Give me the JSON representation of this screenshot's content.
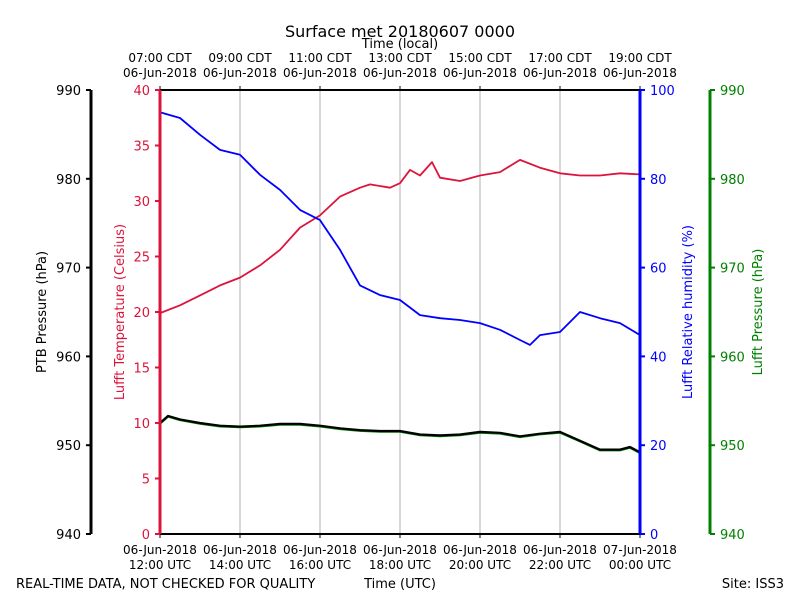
{
  "chart_data": {
    "type": "line",
    "title": "Surface met 20180607 0000",
    "top_axis_label": "Time (local)",
    "xlabel": "Time (UTC)",
    "footer_left": "REAL-TIME DATA, NOT CHECKED FOR QUALITY",
    "footer_right": "Site: ISS3",
    "xlim_hours_since_12utc": [
      0,
      12
    ],
    "grid": "vertical",
    "bottom_ticks": [
      {
        "h": 0,
        "l1": "06-Jun-2018",
        "l2": "12:00 UTC"
      },
      {
        "h": 2,
        "l1": "06-Jun-2018",
        "l2": "14:00 UTC"
      },
      {
        "h": 4,
        "l1": "06-Jun-2018",
        "l2": "16:00 UTC"
      },
      {
        "h": 6,
        "l1": "06-Jun-2018",
        "l2": "18:00 UTC"
      },
      {
        "h": 8,
        "l1": "06-Jun-2018",
        "l2": "20:00 UTC"
      },
      {
        "h": 10,
        "l1": "06-Jun-2018",
        "l2": "22:00 UTC"
      },
      {
        "h": 12,
        "l1": "07-Jun-2018",
        "l2": "00:00 UTC"
      }
    ],
    "top_ticks": [
      {
        "h": 0,
        "l1": "07:00 CDT",
        "l2": "06-Jun-2018"
      },
      {
        "h": 2,
        "l1": "09:00 CDT",
        "l2": "06-Jun-2018"
      },
      {
        "h": 4,
        "l1": "11:00 CDT",
        "l2": "06-Jun-2018"
      },
      {
        "h": 6,
        "l1": "13:00 CDT",
        "l2": "06-Jun-2018"
      },
      {
        "h": 8,
        "l1": "15:00 CDT",
        "l2": "06-Jun-2018"
      },
      {
        "h": 10,
        "l1": "17:00 CDT",
        "l2": "06-Jun-2018"
      },
      {
        "h": 12,
        "l1": "19:00 CDT",
        "l2": "06-Jun-2018"
      }
    ],
    "axes": {
      "ptb": {
        "label": "PTB Pressure (hPa)",
        "ylim": [
          940,
          990
        ],
        "ticks": [
          940,
          950,
          960,
          970,
          980,
          990
        ],
        "color": "#000000"
      },
      "temp": {
        "label": "Lufft Temperature (Celsius)",
        "ylim": [
          0,
          40
        ],
        "ticks": [
          0,
          5,
          10,
          15,
          20,
          25,
          30,
          35,
          40
        ],
        "color": "#dc143c"
      },
      "rh": {
        "label": "Lufft Relative humidity (%)",
        "ylim": [
          0,
          100
        ],
        "ticks": [
          0,
          20,
          40,
          60,
          80,
          100
        ],
        "color": "#0000ff"
      },
      "lp": {
        "label": "Lufft Pressure (hPa)",
        "ylim": [
          940,
          990
        ],
        "ticks": [
          940,
          950,
          960,
          970,
          980,
          990
        ],
        "color": "#008000"
      }
    },
    "series": [
      {
        "name": "Lufft Temperature",
        "axis": "temp",
        "color": "#dc143c",
        "x": [
          0,
          0.5,
          1,
          1.5,
          2,
          2.5,
          3,
          3.5,
          4,
          4.5,
          5,
          5.25,
          5.75,
          6,
          6.25,
          6.5,
          6.8,
          7,
          7.5,
          8,
          8.5,
          9,
          9.5,
          10,
          10.5,
          11,
          11.5,
          12
        ],
        "y": [
          19.9,
          20.6,
          21.5,
          22.4,
          23.1,
          24.2,
          25.6,
          27.6,
          28.7,
          30.4,
          31.2,
          31.5,
          31.2,
          31.6,
          32.8,
          32.3,
          33.5,
          32.1,
          31.8,
          32.3,
          32.6,
          33.7,
          33.0,
          32.5,
          32.3,
          32.3,
          32.5,
          32.4
        ]
      },
      {
        "name": "Lufft Relative humidity",
        "axis": "rh",
        "color": "#0000ff",
        "x": [
          0,
          0.5,
          1,
          1.5,
          2,
          2.5,
          3,
          3.5,
          4,
          4.5,
          5,
          5.5,
          6,
          6.5,
          7,
          7.5,
          8,
          8.5,
          9,
          9.25,
          9.5,
          10,
          10.5,
          11,
          11.5,
          12
        ],
        "y": [
          95.0,
          93.7,
          89.9,
          86.5,
          85.4,
          80.9,
          77.5,
          73.0,
          70.7,
          64.0,
          56.0,
          53.8,
          52.7,
          49.3,
          48.6,
          48.2,
          47.5,
          46.0,
          43.7,
          42.6,
          44.8,
          45.5,
          50.0,
          48.6,
          47.5,
          44.8
        ]
      },
      {
        "name": "Lufft Pressure",
        "axis": "lp",
        "color": "#008000",
        "x": [
          0,
          0.2,
          0.5,
          1,
          1.5,
          2,
          2.5,
          3,
          3.5,
          4,
          4.5,
          5,
          5.5,
          6,
          6.5,
          7,
          7.5,
          8,
          8.5,
          9,
          9.5,
          10,
          10.5,
          11,
          11.5,
          11.75,
          12
        ],
        "y": [
          952.4,
          953.2,
          952.8,
          952.4,
          952.1,
          952.0,
          952.1,
          952.3,
          952.3,
          952.1,
          951.8,
          951.6,
          951.5,
          951.5,
          951.1,
          951.0,
          951.1,
          951.4,
          951.3,
          950.9,
          951.2,
          951.4,
          950.4,
          949.4,
          949.4,
          949.7,
          949.1
        ]
      },
      {
        "name": "PTB Pressure",
        "axis": "ptb",
        "color": "#000000",
        "x": [
          0,
          0.2,
          0.5,
          1,
          1.5,
          2,
          2.5,
          3,
          3.5,
          4,
          4.5,
          5,
          5.5,
          6,
          6.5,
          7,
          7.5,
          8,
          8.5,
          9,
          9.5,
          10,
          10.5,
          11,
          11.5,
          11.75,
          12
        ],
        "y": [
          952.5,
          953.3,
          952.9,
          952.5,
          952.2,
          952.1,
          952.2,
          952.4,
          952.4,
          952.2,
          951.9,
          951.7,
          951.6,
          951.6,
          951.2,
          951.1,
          951.2,
          951.5,
          951.4,
          951.0,
          951.3,
          951.5,
          950.5,
          949.5,
          949.5,
          949.8,
          949.2
        ]
      }
    ]
  }
}
